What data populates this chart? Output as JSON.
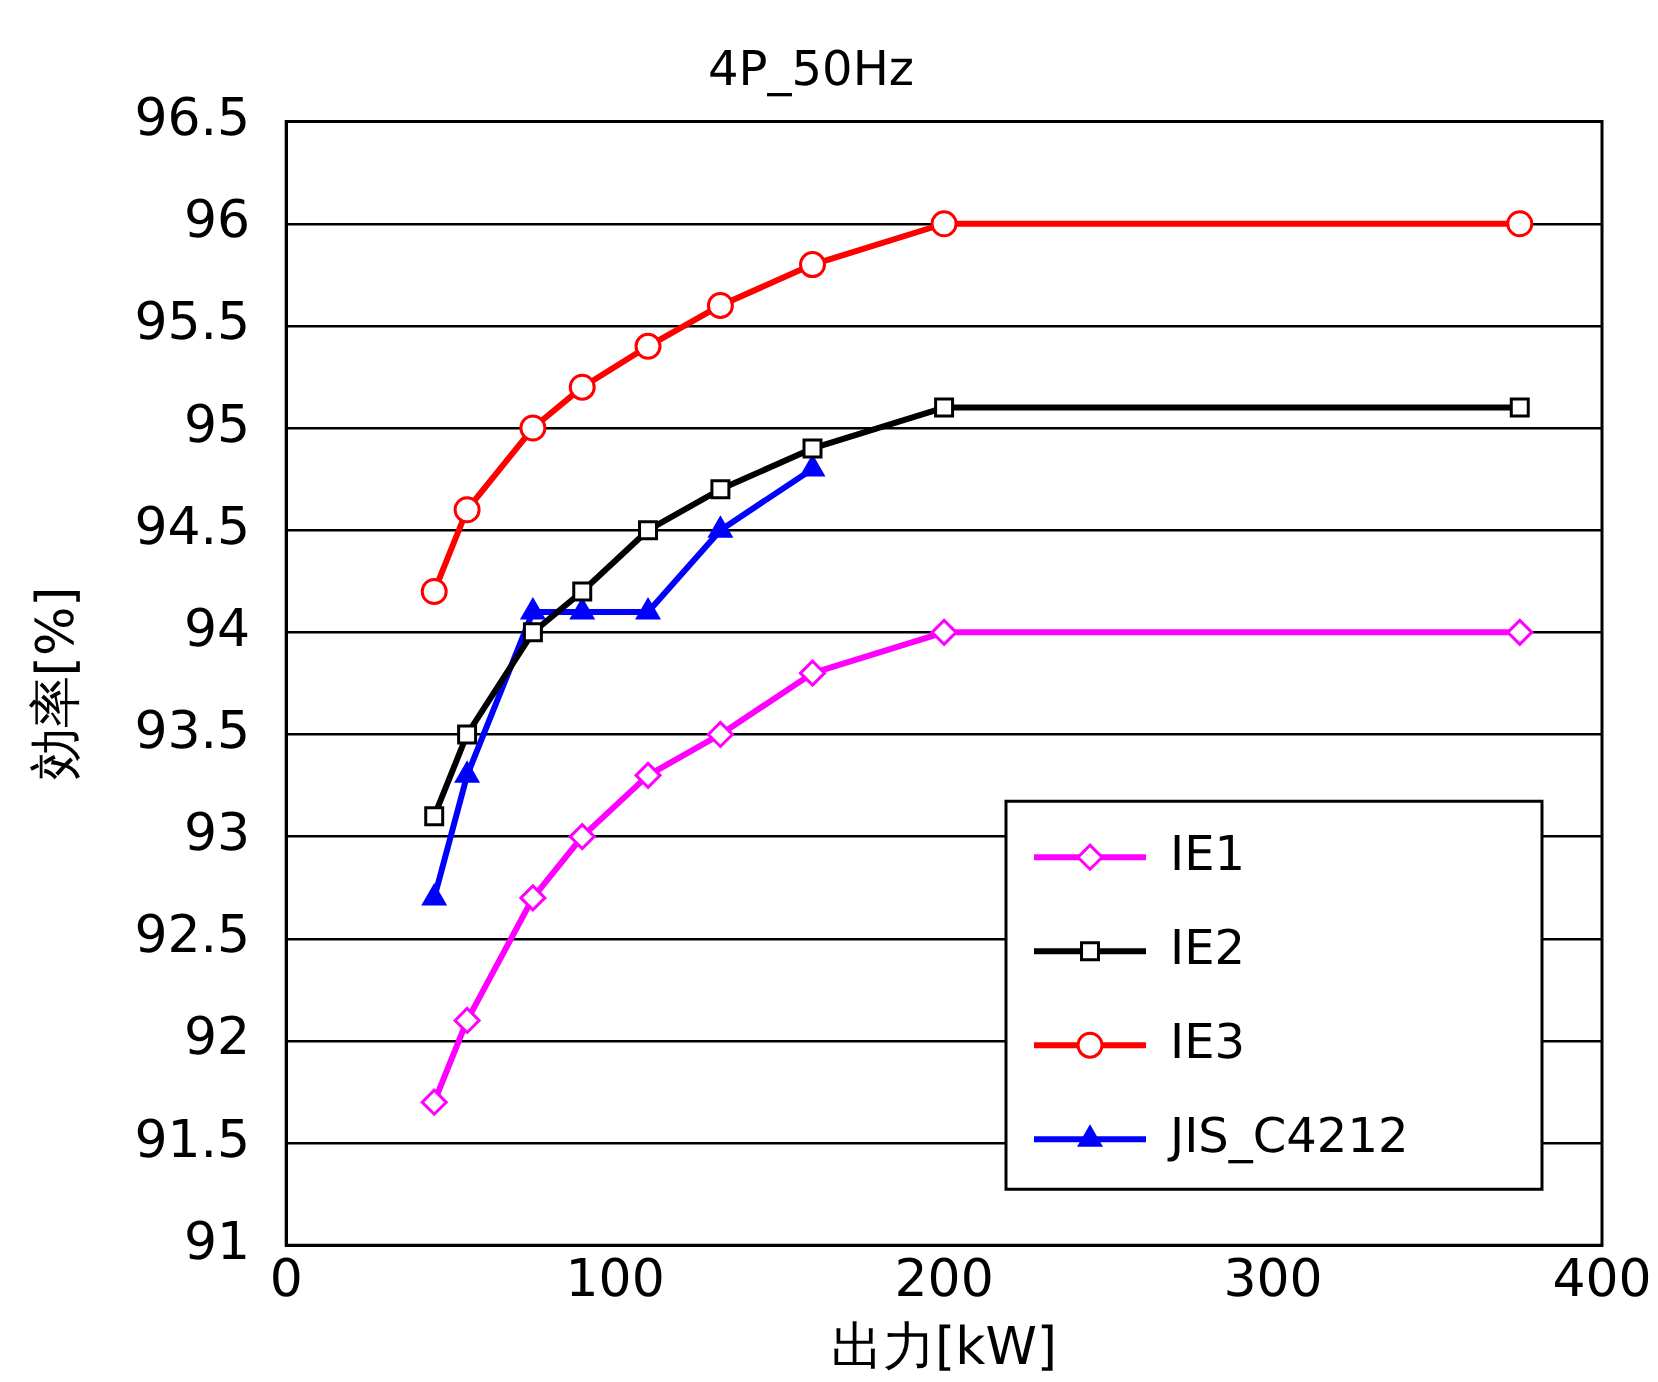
{
  "chart_data": {
    "type": "line",
    "title": "4P_50Hz",
    "xlabel": "出力[kW]",
    "ylabel": "効率[%]",
    "xlim": [
      0,
      400
    ],
    "xticks": [
      0,
      100,
      200,
      300,
      400
    ],
    "ylim": [
      91,
      96.5
    ],
    "yticks": [
      91,
      91.5,
      92,
      92.5,
      93,
      93.5,
      94,
      94.5,
      95,
      95.5,
      96,
      96.5
    ],
    "grid": "y",
    "legend": "bottom right",
    "line_style": "solid",
    "series": [
      {
        "name": "IE1",
        "color": "#ff00ff",
        "marker": "diamond",
        "x": [
          45,
          55,
          75,
          90,
          110,
          132,
          160,
          200,
          375
        ],
        "values": [
          91.7,
          92.1,
          92.7,
          93.0,
          93.3,
          93.5,
          93.8,
          94.0,
          94.0
        ]
      },
      {
        "name": "IE2",
        "color": "#000000",
        "marker": "square",
        "x": [
          45,
          55,
          75,
          90,
          110,
          132,
          160,
          200,
          375
        ],
        "values": [
          93.1,
          93.5,
          94.0,
          94.2,
          94.5,
          94.7,
          94.9,
          95.1,
          95.1
        ]
      },
      {
        "name": "IE3",
        "color": "#ff0000",
        "marker": "circle",
        "x": [
          45,
          55,
          75,
          90,
          110,
          132,
          160,
          200,
          375
        ],
        "values": [
          94.2,
          94.6,
          95.0,
          95.2,
          95.4,
          95.6,
          95.8,
          96.0,
          96.0
        ]
      },
      {
        "name": "JIS_C4212",
        "color": "#0000ff",
        "marker": "triangle",
        "x": [
          45,
          55,
          75,
          90,
          110,
          132,
          160
        ],
        "values": [
          92.7,
          93.3,
          94.1,
          94.1,
          94.1,
          94.5,
          94.8
        ]
      }
    ]
  }
}
